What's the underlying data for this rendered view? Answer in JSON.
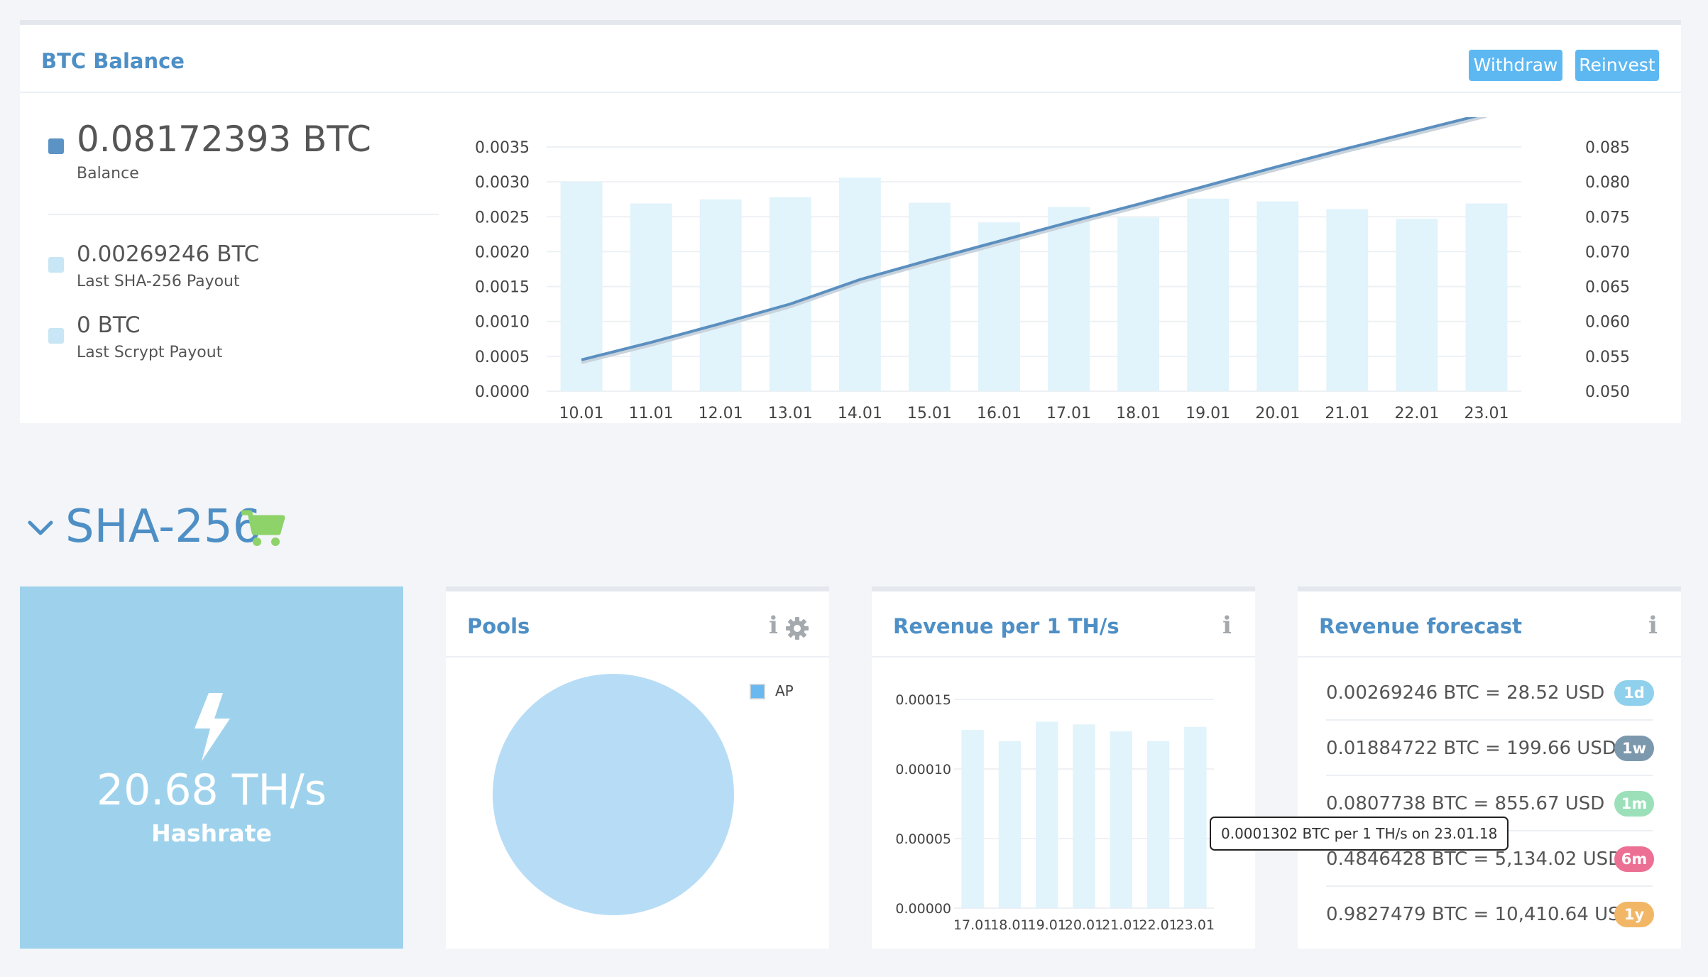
{
  "balance": {
    "title": "BTC Balance",
    "withdraw_label": "Withdraw",
    "reinvest_label": "Reinvest",
    "main_value": "0.08172393 BTC",
    "main_label": "Balance",
    "sha_value": "0.00269246 BTC",
    "sha_label": "Last SHA-256 Payout",
    "scrypt_value": "0 BTC",
    "scrypt_label": "Last Scrypt Payout",
    "colors": {
      "balance": "#5b93c4",
      "payout": "#c8e6f5",
      "accent": "#5db8f2"
    }
  },
  "section": {
    "title": "SHA-256",
    "cart_icon": "cart-icon",
    "chevron_icon": "chevron-down-icon"
  },
  "hashrate": {
    "value": "20.68 TH/s",
    "label": "Hashrate",
    "icon": "bolt-icon",
    "color": "#9ed2ec"
  },
  "pools": {
    "title": "Pools",
    "legend": "AP",
    "info_icon": "info-icon",
    "settings_icon": "gear-icon"
  },
  "revenue": {
    "title": "Revenue per 1 TH/s",
    "tooltip": "0.0001302 BTC per 1 TH/s on 23.01.18"
  },
  "forecast": {
    "title": "Revenue forecast",
    "rows": [
      {
        "text": "0.00269246 BTC = 28.52 USD",
        "badge": "1d",
        "color": "#8fd0ec"
      },
      {
        "text": "0.01884722 BTC = 199.66 USD",
        "badge": "1w",
        "color": "#7c98ad"
      },
      {
        "text": "0.0807738 BTC = 855.67 USD",
        "badge": "1m",
        "color": "#9be0b9"
      },
      {
        "text": "0.4846428 BTC = 5,134.02 USD",
        "badge": "6m",
        "color": "#ec6f94"
      },
      {
        "text": "0.9827479 BTC = 10,410.64 USD",
        "badge": "1y",
        "color": "#f2b766"
      }
    ]
  },
  "chart_data": [
    {
      "type": "bar",
      "categories": [
        "10.01",
        "11.01",
        "12.01",
        "13.01",
        "14.01",
        "15.01",
        "16.01",
        "17.01",
        "18.01",
        "19.01",
        "20.01",
        "21.01",
        "22.01",
        "23.01"
      ],
      "series": [
        {
          "values": [
            0.003,
            0.00269,
            0.00275,
            0.00278,
            0.00306,
            0.0027,
            0.00242,
            0.00264,
            0.00249,
            0.00276,
            0.00272,
            0.00261,
            0.00247,
            0.00269
          ],
          "axis": "left",
          "mark": "bar",
          "color": "#e1f3fb"
        },
        {
          "values": [
            0.0545,
            0.057,
            0.0597,
            0.0625,
            0.066,
            0.0688,
            0.0715,
            0.0742,
            0.0768,
            0.0795,
            0.0822,
            0.0848,
            0.0873,
            0.0898
          ],
          "axis": "right",
          "mark": "line",
          "color": "#5b8fbf"
        }
      ],
      "y_ticks_left": [
        "0.0000",
        "0.0005",
        "0.0010",
        "0.0015",
        "0.0020",
        "0.0025",
        "0.0030",
        "0.0035"
      ],
      "y_ticks_right": [
        "0.050",
        "0.055",
        "0.060",
        "0.065",
        "0.070",
        "0.075",
        "0.080",
        "0.085"
      ],
      "ylim_left": [
        0,
        0.0035
      ],
      "ylim_right": [
        0.05,
        0.085
      ],
      "grid": true
    },
    {
      "type": "pie",
      "labels": [
        "AP"
      ],
      "values": [
        100
      ],
      "colors": [
        "#b7dcf6"
      ],
      "legend": "top-right"
    },
    {
      "type": "bar",
      "categories": [
        "17.01",
        "18.01",
        "19.01",
        "20.01",
        "21.01",
        "22.01",
        "23.01"
      ],
      "values": [
        0.000128,
        0.00012,
        0.000134,
        0.000132,
        0.000127,
        0.00012,
        0.0001302
      ],
      "y_ticks": [
        "0.00000",
        "0.00005",
        "0.00010",
        "0.00015"
      ],
      "ylim": [
        0,
        0.00015
      ],
      "grid": true
    }
  ]
}
